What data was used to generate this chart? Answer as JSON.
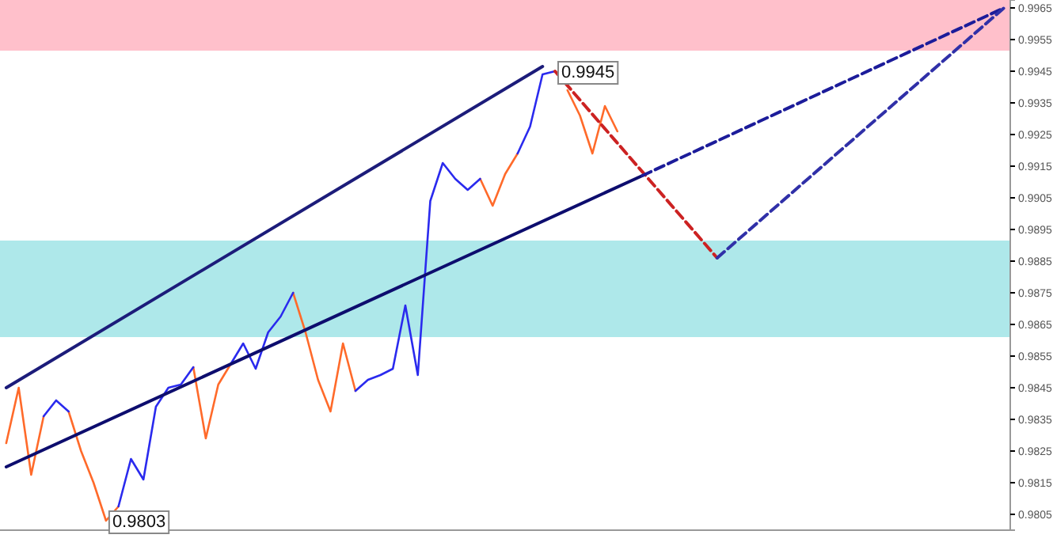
{
  "chart_data": {
    "type": "line",
    "ylim": [
      0.98,
      0.99675
    ],
    "yticks": [
      0.9965,
      0.9955,
      0.9945,
      0.9935,
      0.9925,
      0.9915,
      0.9905,
      0.9895,
      0.9885,
      0.9875,
      0.9865,
      0.9855,
      0.9845,
      0.9835,
      0.9825,
      0.9815,
      0.9805
    ],
    "tick_labels": "y",
    "grid": false,
    "categories": [
      null,
      null,
      null,
      null,
      null,
      null,
      null,
      null,
      null,
      null,
      null,
      null,
      null,
      null,
      null,
      null,
      null,
      null,
      null,
      null,
      null,
      null,
      null,
      null,
      null,
      null,
      null,
      null,
      null,
      null,
      null,
      null,
      null,
      null,
      null,
      null,
      null,
      null,
      null,
      null,
      null,
      null,
      null,
      null,
      null,
      null,
      null,
      null,
      null,
      null,
      null,
      null,
      null,
      null,
      null,
      null,
      null,
      null,
      null,
      null,
      null,
      null,
      null,
      null,
      null,
      null,
      null,
      null,
      null,
      null,
      null,
      null,
      null,
      null,
      null,
      null,
      null,
      null,
      null,
      null,
      null
    ],
    "bands": [
      {
        "axis": "y",
        "from": 0.99515,
        "to": 0.99675,
        "color": "#ffc0cb"
      },
      {
        "axis": "y",
        "from": 0.9861,
        "to": 0.98915,
        "color": "#aee8ea"
      }
    ],
    "series": [
      {
        "color": "#ff6a2a",
        "values": [
          0.98275,
          0.9845,
          0.98175,
          0.9836,
          null,
          0.98375,
          0.9825,
          0.9815,
          0.9803,
          0.98075,
          null,
          null,
          null,
          null,
          null,
          0.98515,
          0.9829,
          0.9846,
          0.98525,
          null,
          null,
          null,
          null,
          0.9875,
          0.98625,
          0.98475,
          0.98375,
          0.9859,
          0.9844,
          null,
          null,
          null,
          null,
          null,
          null,
          null,
          null,
          null,
          0.9911,
          0.99025,
          0.99125,
          0.9919,
          null,
          null,
          null,
          0.9939,
          0.9931,
          0.9919,
          0.9934,
          0.9926,
          null,
          null,
          null,
          null,
          null,
          null,
          null,
          null,
          null,
          null,
          null,
          null,
          null,
          null,
          null,
          null,
          null,
          null,
          null,
          null,
          null,
          null,
          null,
          null,
          null,
          null,
          null,
          null,
          null,
          null,
          null
        ]
      },
      {
        "color": "#2a2aee",
        "values": [
          null,
          null,
          null,
          0.9836,
          0.9841,
          0.98375,
          null,
          null,
          null,
          0.98075,
          0.98225,
          0.9816,
          0.9839,
          0.9845,
          0.9846,
          0.98515,
          null,
          null,
          0.98525,
          0.9859,
          0.9851,
          0.98625,
          0.98675,
          0.9875,
          null,
          null,
          null,
          null,
          0.9844,
          0.98475,
          0.9849,
          0.9851,
          0.9871,
          0.9849,
          0.9904,
          0.9916,
          0.9911,
          0.99075,
          0.9911,
          null,
          null,
          0.9919,
          0.99275,
          0.9944,
          0.9945,
          null,
          null,
          null,
          null,
          null,
          null,
          null,
          null,
          null,
          null,
          null,
          null,
          null,
          null,
          null,
          null,
          null,
          null,
          null,
          null,
          null,
          null,
          null,
          null,
          null,
          null,
          null,
          null,
          null,
          null,
          null,
          null,
          null,
          null,
          null,
          null
        ]
      },
      {
        "color": "#1c1c7a",
        "line_style": "solid",
        "values": [
          0.9845,
          null,
          null,
          null,
          null,
          null,
          null,
          null,
          null,
          null,
          null,
          null,
          null,
          null,
          null,
          null,
          null,
          null,
          null,
          null,
          null,
          null,
          null,
          null,
          null,
          null,
          null,
          null,
          null,
          null,
          null,
          null,
          null,
          null,
          null,
          null,
          null,
          null,
          null,
          null,
          null,
          null,
          null,
          0.99465,
          null,
          null,
          null,
          null,
          null,
          null,
          null,
          null,
          null,
          null,
          null,
          null,
          null,
          null,
          null,
          null,
          null,
          null,
          null,
          null,
          null,
          null,
          null,
          null,
          null,
          null,
          null,
          null,
          null,
          null,
          null,
          null,
          null,
          null,
          null,
          null,
          null
        ]
      },
      {
        "color": "#0d0d6e",
        "line_style": "solid",
        "values": [
          0.982,
          null,
          null,
          null,
          null,
          null,
          null,
          null,
          null,
          null,
          null,
          null,
          null,
          null,
          null,
          null,
          null,
          null,
          null,
          null,
          null,
          null,
          null,
          null,
          null,
          null,
          null,
          null,
          null,
          null,
          null,
          null,
          null,
          null,
          null,
          null,
          null,
          null,
          null,
          null,
          null,
          null,
          null,
          null,
          null,
          null,
          null,
          null,
          null,
          null,
          null,
          0.9912,
          null,
          null,
          null,
          null,
          null,
          null,
          null,
          null,
          null,
          null,
          null,
          null,
          null,
          null,
          null,
          null,
          null,
          null,
          null,
          null,
          null,
          null,
          null,
          null,
          null,
          null,
          null,
          null,
          null
        ]
      },
      {
        "color": "#cc2222",
        "line_style": "dashed",
        "values": [
          null,
          null,
          null,
          null,
          null,
          null,
          null,
          null,
          null,
          null,
          null,
          null,
          null,
          null,
          null,
          null,
          null,
          null,
          null,
          null,
          null,
          null,
          null,
          null,
          null,
          null,
          null,
          null,
          null,
          null,
          null,
          null,
          null,
          null,
          null,
          null,
          null,
          null,
          null,
          null,
          null,
          null,
          null,
          null,
          0.9945,
          null,
          null,
          null,
          null,
          null,
          null,
          null,
          null,
          null,
          null,
          null,
          null,
          0.9886,
          null,
          null,
          null,
          null,
          null,
          null,
          null,
          null,
          null,
          null,
          null,
          null,
          null,
          null,
          null,
          null,
          null,
          null,
          null,
          null,
          null,
          null,
          null
        ]
      },
      {
        "color": "#1c1c9a",
        "line_style": "dashed",
        "values": [
          null,
          null,
          null,
          null,
          null,
          null,
          null,
          null,
          null,
          null,
          null,
          null,
          null,
          null,
          null,
          null,
          null,
          null,
          null,
          null,
          null,
          null,
          null,
          null,
          null,
          null,
          null,
          null,
          null,
          null,
          null,
          null,
          null,
          null,
          null,
          null,
          null,
          null,
          null,
          null,
          null,
          null,
          null,
          null,
          null,
          null,
          null,
          null,
          null,
          null,
          null,
          0.9912,
          null,
          null,
          null,
          null,
          null,
          null,
          null,
          null,
          null,
          null,
          null,
          null,
          null,
          null,
          null,
          null,
          null,
          null,
          null,
          null,
          null,
          null,
          null,
          null,
          null,
          null,
          null,
          null,
          0.9965
        ]
      },
      {
        "color": "#3030a8",
        "line_style": "dashed",
        "values": [
          null,
          null,
          null,
          null,
          null,
          null,
          null,
          null,
          null,
          null,
          null,
          null,
          null,
          null,
          null,
          null,
          null,
          null,
          null,
          null,
          null,
          null,
          null,
          null,
          null,
          null,
          null,
          null,
          null,
          null,
          null,
          null,
          null,
          null,
          null,
          null,
          null,
          null,
          null,
          null,
          null,
          null,
          null,
          null,
          null,
          null,
          null,
          null,
          null,
          null,
          null,
          null,
          null,
          null,
          null,
          null,
          null,
          0.9886,
          null,
          null,
          null,
          null,
          null,
          null,
          null,
          null,
          null,
          null,
          null,
          null,
          null,
          null,
          null,
          null,
          null,
          null,
          null,
          null,
          null,
          null,
          0.9965
        ]
      }
    ],
    "annotations": [
      {
        "text": "0.9945",
        "y": 0.9945
      },
      {
        "text": "0.9803",
        "y": 0.9803
      }
    ]
  }
}
